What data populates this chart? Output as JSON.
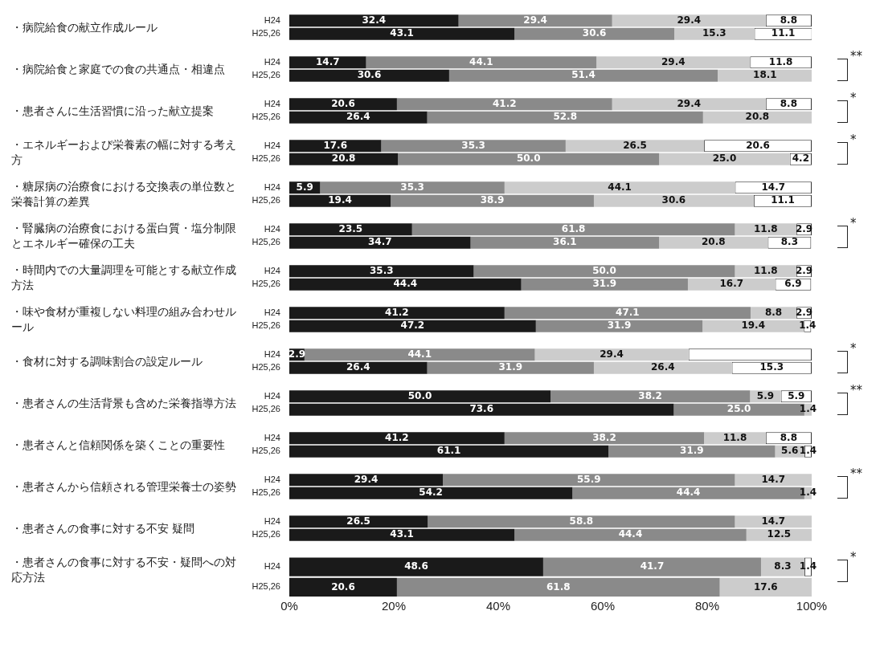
{
  "chart_data": [
    {
      "type": "bar",
      "orientation": "horizontal",
      "stacked": true,
      "ylabel": "・病院給食の献立作成ルール",
      "categories": [
        "H24",
        "H25,26"
      ],
      "xlim": [
        0,
        100
      ],
      "tick_labels": "y",
      "grid": false,
      "legend": false,
      "series": [
        {
          "color": "#1a1a1a",
          "values": [
            32.4,
            43.1
          ],
          "value_labels": [
            "32.4",
            "43.1"
          ]
        },
        {
          "color": "#8a8a8a",
          "values": [
            29.4,
            30.6
          ],
          "value_labels": [
            "29.4",
            "30.6"
          ]
        },
        {
          "color": "#cccccc",
          "values": [
            29.4,
            15.3
          ],
          "value_labels": [
            "29.4",
            "15.3"
          ]
        },
        {
          "color": "#ffffff",
          "values": [
            8.8,
            11.1
          ],
          "value_labels": [
            "8.8",
            "11.1"
          ]
        }
      ]
    },
    {
      "type": "bar",
      "orientation": "horizontal",
      "stacked": true,
      "ylabel": "・病院給食と家庭での食の共通点・相違点",
      "categories": [
        "H24",
        "H25,26"
      ],
      "xlim": [
        0,
        100
      ],
      "tick_labels": "y",
      "grid": false,
      "legend": false,
      "annotations": [
        "**"
      ],
      "series": [
        {
          "color": "#1a1a1a",
          "values": [
            14.7,
            30.6
          ],
          "value_labels": [
            "14.7",
            "30.6"
          ]
        },
        {
          "color": "#8a8a8a",
          "values": [
            44.1,
            51.4
          ],
          "value_labels": [
            "44.1",
            "51.4"
          ]
        },
        {
          "color": "#cccccc",
          "values": [
            29.4,
            18.1
          ],
          "value_labels": [
            "29.4",
            "18.1"
          ]
        },
        {
          "color": "#ffffff",
          "values": [
            11.8,
            null
          ],
          "value_labels": [
            "11.8",
            null
          ]
        }
      ]
    },
    {
      "type": "bar",
      "orientation": "horizontal",
      "stacked": true,
      "ylabel": "・患者さんに生活習慣に沿った献立提案",
      "categories": [
        "H24",
        "H25,26"
      ],
      "xlim": [
        0,
        100
      ],
      "tick_labels": "y",
      "grid": false,
      "legend": false,
      "annotations": [
        "*"
      ],
      "series": [
        {
          "color": "#1a1a1a",
          "values": [
            20.6,
            26.4
          ],
          "value_labels": [
            "20.6",
            "26.4"
          ]
        },
        {
          "color": "#8a8a8a",
          "values": [
            41.2,
            52.8
          ],
          "value_labels": [
            "41.2",
            "52.8"
          ]
        },
        {
          "color": "#cccccc",
          "values": [
            29.4,
            20.8
          ],
          "value_labels": [
            "29.4",
            "20.8"
          ]
        },
        {
          "color": "#ffffff",
          "values": [
            8.8,
            null
          ],
          "value_labels": [
            "8.8",
            null
          ]
        }
      ]
    },
    {
      "type": "bar",
      "orientation": "horizontal",
      "stacked": true,
      "ylabel": "・エネルギーおよび栄養素の幅に対する考え方",
      "categories": [
        "H24",
        "H25,26"
      ],
      "xlim": [
        0,
        100
      ],
      "tick_labels": "y",
      "grid": false,
      "legend": false,
      "annotations": [
        "*"
      ],
      "series": [
        {
          "color": "#1a1a1a",
          "values": [
            17.6,
            20.8
          ],
          "value_labels": [
            "17.6",
            "20.8"
          ]
        },
        {
          "color": "#8a8a8a",
          "values": [
            35.3,
            50.0
          ],
          "value_labels": [
            "35.3",
            "50.0"
          ]
        },
        {
          "color": "#cccccc",
          "values": [
            26.5,
            25.0
          ],
          "value_labels": [
            "26.5",
            "25.0"
          ]
        },
        {
          "color": "#ffffff",
          "values": [
            20.6,
            4.2
          ],
          "value_labels": [
            "20.6",
            "4.2"
          ]
        }
      ]
    },
    {
      "type": "bar",
      "orientation": "horizontal",
      "stacked": true,
      "ylabel": "・糖尿病の治療食における交換表の単位数と栄養計算の差異",
      "categories": [
        "H24",
        "H25,26"
      ],
      "xlim": [
        0,
        100
      ],
      "tick_labels": "y",
      "grid": false,
      "legend": false,
      "series": [
        {
          "color": "#1a1a1a",
          "values": [
            5.9,
            19.4
          ],
          "value_labels": [
            "5.9",
            "19.4"
          ]
        },
        {
          "color": "#8a8a8a",
          "values": [
            35.3,
            38.9
          ],
          "value_labels": [
            "35.3",
            "38.9"
          ]
        },
        {
          "color": "#cccccc",
          "values": [
            44.1,
            30.6
          ],
          "value_labels": [
            "44.1",
            "30.6"
          ]
        },
        {
          "color": "#ffffff",
          "values": [
            14.7,
            11.1
          ],
          "value_labels": [
            "14.7",
            "11.1"
          ]
        }
      ]
    },
    {
      "type": "bar",
      "orientation": "horizontal",
      "stacked": true,
      "ylabel": "・腎臓病の治療食における蛋白質・塩分制限とエネルギー確保の工夫",
      "categories": [
        "H24",
        "H25,26"
      ],
      "xlim": [
        0,
        100
      ],
      "tick_labels": "y",
      "grid": false,
      "legend": false,
      "annotations": [
        "*"
      ],
      "series": [
        {
          "color": "#1a1a1a",
          "values": [
            23.5,
            34.7
          ],
          "value_labels": [
            "23.5",
            "34.7"
          ]
        },
        {
          "color": "#8a8a8a",
          "values": [
            61.8,
            36.1
          ],
          "value_labels": [
            "61.8",
            "36.1"
          ]
        },
        {
          "color": "#cccccc",
          "values": [
            11.8,
            20.8
          ],
          "value_labels": [
            "11.8",
            "20.8"
          ]
        },
        {
          "color": "#ffffff",
          "values": [
            2.9,
            8.3
          ],
          "value_labels": [
            "2.9",
            "8.3"
          ]
        }
      ]
    },
    {
      "type": "bar",
      "orientation": "horizontal",
      "stacked": true,
      "ylabel": "・時間内での大量調理を可能とする献立作成方法",
      "categories": [
        "H24",
        "H25,26"
      ],
      "xlim": [
        0,
        100
      ],
      "tick_labels": "y",
      "grid": false,
      "legend": false,
      "series": [
        {
          "color": "#1a1a1a",
          "values": [
            35.3,
            44.4
          ],
          "value_labels": [
            "35.3",
            "44.4"
          ]
        },
        {
          "color": "#8a8a8a",
          "values": [
            50.0,
            31.9
          ],
          "value_labels": [
            "50.0",
            "31.9"
          ]
        },
        {
          "color": "#cccccc",
          "values": [
            11.8,
            16.7
          ],
          "value_labels": [
            "11.8",
            "16.7"
          ]
        },
        {
          "color": "#ffffff",
          "values": [
            2.9,
            6.9
          ],
          "value_labels": [
            "2.9",
            "6.9"
          ]
        }
      ]
    },
    {
      "type": "bar",
      "orientation": "horizontal",
      "stacked": true,
      "ylabel": "・味や食材が重複しない料理の組み合わせルール",
      "categories": [
        "H24",
        "H25,26"
      ],
      "xlim": [
        0,
        100
      ],
      "tick_labels": "y",
      "grid": false,
      "legend": false,
      "series": [
        {
          "color": "#1a1a1a",
          "values": [
            41.2,
            47.2
          ],
          "value_labels": [
            "41.2",
            "47.2"
          ]
        },
        {
          "color": "#8a8a8a",
          "values": [
            47.1,
            31.9
          ],
          "value_labels": [
            "47.1",
            "31.9"
          ]
        },
        {
          "color": "#cccccc",
          "values": [
            8.8,
            19.4
          ],
          "value_labels": [
            "8.8",
            "19.4"
          ]
        },
        {
          "color": "#ffffff",
          "values": [
            2.9,
            1.4
          ],
          "value_labels": [
            "2.9",
            "1.4"
          ]
        }
      ]
    },
    {
      "type": "bar",
      "orientation": "horizontal",
      "stacked": true,
      "ylabel": "・食材に対する調味割合の設定ルール",
      "categories": [
        "H24",
        "H25,26"
      ],
      "xlim": [
        0,
        100
      ],
      "tick_labels": "y",
      "grid": false,
      "legend": false,
      "annotations": [
        "*"
      ],
      "series": [
        {
          "color": "#1a1a1a",
          "values": [
            2.9,
            26.4
          ],
          "value_labels": [
            "2.9",
            "26.4"
          ]
        },
        {
          "color": "#8a8a8a",
          "values": [
            44.1,
            31.9
          ],
          "value_labels": [
            "44.1",
            "31.9"
          ]
        },
        {
          "color": "#cccccc",
          "values": [
            29.4,
            26.4
          ],
          "value_labels": [
            "29.4",
            "26.4"
          ]
        },
        {
          "color": "#ffffff",
          "values": [
            23.6,
            15.3
          ],
          "value_labels": [
            null,
            "15.3"
          ]
        }
      ]
    },
    {
      "type": "bar",
      "orientation": "horizontal",
      "stacked": true,
      "ylabel": "・患者さんの生活背景も含めた栄養指導方法",
      "categories": [
        "H24",
        "H25,26"
      ],
      "xlim": [
        0,
        100
      ],
      "tick_labels": "y",
      "grid": false,
      "legend": false,
      "annotations": [
        "**"
      ],
      "series": [
        {
          "color": "#1a1a1a",
          "values": [
            50.0,
            73.6
          ],
          "value_labels": [
            "50.0",
            "73.6"
          ]
        },
        {
          "color": "#8a8a8a",
          "values": [
            38.2,
            25.0
          ],
          "value_labels": [
            "38.2",
            "25.0"
          ]
        },
        {
          "color": "#cccccc",
          "values": [
            5.9,
            1.4
          ],
          "value_labels": [
            "5.9",
            "1.4"
          ]
        },
        {
          "color": "#ffffff",
          "values": [
            5.9,
            null
          ],
          "value_labels": [
            "5.9",
            null
          ]
        }
      ]
    },
    {
      "type": "bar",
      "orientation": "horizontal",
      "stacked": true,
      "ylabel": "・患者さんと信頼関係を築くことの重要性",
      "categories": [
        "H24",
        "H25,26"
      ],
      "xlim": [
        0,
        100
      ],
      "tick_labels": "y",
      "grid": false,
      "legend": false,
      "series": [
        {
          "color": "#1a1a1a",
          "values": [
            41.2,
            61.1
          ],
          "value_labels": [
            "41.2",
            "61.1"
          ]
        },
        {
          "color": "#8a8a8a",
          "values": [
            38.2,
            31.9
          ],
          "value_labels": [
            "38.2",
            "31.9"
          ]
        },
        {
          "color": "#cccccc",
          "values": [
            11.8,
            5.6
          ],
          "value_labels": [
            "11.8",
            "5.6"
          ]
        },
        {
          "color": "#ffffff",
          "values": [
            8.8,
            1.4
          ],
          "value_labels": [
            "8.8",
            "1.4"
          ]
        }
      ]
    },
    {
      "type": "bar",
      "orientation": "horizontal",
      "stacked": true,
      "ylabel": "・患者さんから信頼される管理栄養士の姿勢",
      "categories": [
        "H24",
        "H25,26"
      ],
      "xlim": [
        0,
        100
      ],
      "tick_labels": "y",
      "grid": false,
      "legend": false,
      "annotations": [
        "**"
      ],
      "series": [
        {
          "color": "#1a1a1a",
          "values": [
            29.4,
            54.2
          ],
          "value_labels": [
            "29.4",
            "54.2"
          ]
        },
        {
          "color": "#8a8a8a",
          "values": [
            55.9,
            44.4
          ],
          "value_labels": [
            "55.9",
            "44.4"
          ]
        },
        {
          "color": "#cccccc",
          "values": [
            14.7,
            1.4
          ],
          "value_labels": [
            "14.7",
            "1.4"
          ]
        }
      ]
    },
    {
      "type": "bar",
      "orientation": "horizontal",
      "stacked": true,
      "ylabel": "・患者さんの食事に対する不安 疑問",
      "categories": [
        "H24",
        "H25,26"
      ],
      "xlim": [
        0,
        100
      ],
      "tick_labels": "y",
      "grid": false,
      "legend": false,
      "series": [
        {
          "color": "#1a1a1a",
          "values": [
            26.5,
            43.1
          ],
          "value_labels": [
            "26.5",
            "43.1"
          ]
        },
        {
          "color": "#8a8a8a",
          "values": [
            58.8,
            44.4
          ],
          "value_labels": [
            "58.8",
            "44.4"
          ]
        },
        {
          "color": "#cccccc",
          "values": [
            14.7,
            12.5
          ],
          "value_labels": [
            "14.7",
            "12.5"
          ]
        }
      ]
    },
    {
      "type": "bar",
      "orientation": "horizontal",
      "stacked": true,
      "ylabel": "・患者さんの食事に対する不安・疑問への対応方法",
      "categories": [
        "H24",
        "H25,26"
      ],
      "xlim": [
        0,
        100
      ],
      "xticks": [
        {
          "value": 0,
          "label": "0%"
        },
        {
          "value": 20,
          "label": "20%"
        },
        {
          "value": 40,
          "label": "40%"
        },
        {
          "value": 60,
          "label": "60%"
        },
        {
          "value": 80,
          "label": "80%"
        },
        {
          "value": 100,
          "label": "100%"
        }
      ],
      "grid": false,
      "legend": false,
      "annotations": [
        "*"
      ],
      "series": [
        {
          "color": "#1a1a1a",
          "values": [
            48.6,
            20.6
          ],
          "value_labels": [
            "48.6",
            "20.6"
          ]
        },
        {
          "color": "#8a8a8a",
          "values": [
            41.7,
            61.8
          ],
          "value_labels": [
            "41.7",
            "61.8"
          ]
        },
        {
          "color": "#cccccc",
          "values": [
            8.3,
            17.6
          ],
          "value_labels": [
            "8.3",
            "17.6"
          ]
        },
        {
          "color": "#ffffff",
          "values": [
            1.4,
            null
          ],
          "value_labels": [
            "1.4",
            null
          ]
        }
      ]
    }
  ]
}
